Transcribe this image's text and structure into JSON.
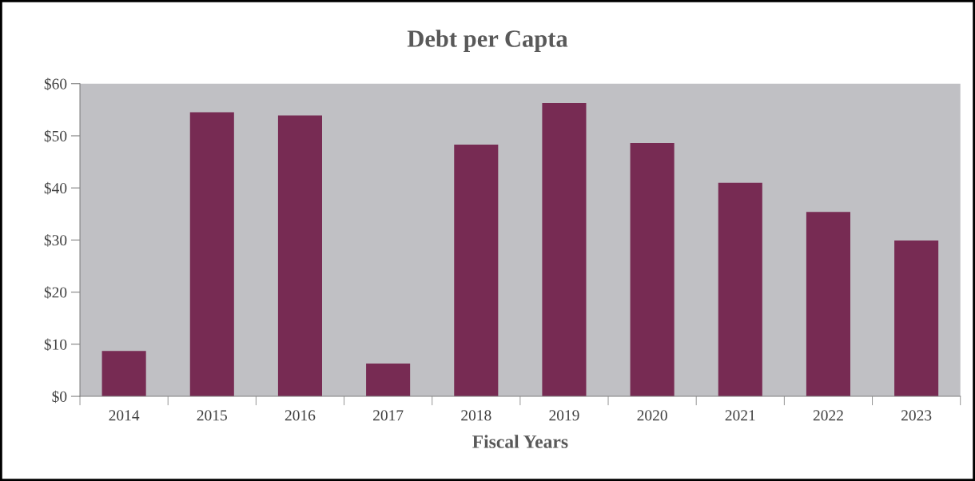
{
  "chart_data": {
    "type": "bar",
    "title": "Debt per Capta",
    "xlabel": "Fiscal Years",
    "categories": [
      "2014",
      "2015",
      "2016",
      "2017",
      "2018",
      "2019",
      "2020",
      "2021",
      "2022",
      "2023"
    ],
    "values": [
      8.7,
      54.5,
      53.9,
      6.3,
      48.3,
      56.3,
      48.6,
      41.0,
      35.4,
      29.9
    ],
    "color": "#772b53",
    "ylim": [
      0,
      60
    ],
    "yticks": [
      {
        "value": 0,
        "label": "$0"
      },
      {
        "value": 10,
        "label": "$10"
      },
      {
        "value": 20,
        "label": "$20"
      },
      {
        "value": 30,
        "label": "$30"
      },
      {
        "value": 40,
        "label": "$40"
      },
      {
        "value": 50,
        "label": "$50"
      },
      {
        "value": 60,
        "label": "$60"
      }
    ],
    "grid": false,
    "legend": false
  }
}
